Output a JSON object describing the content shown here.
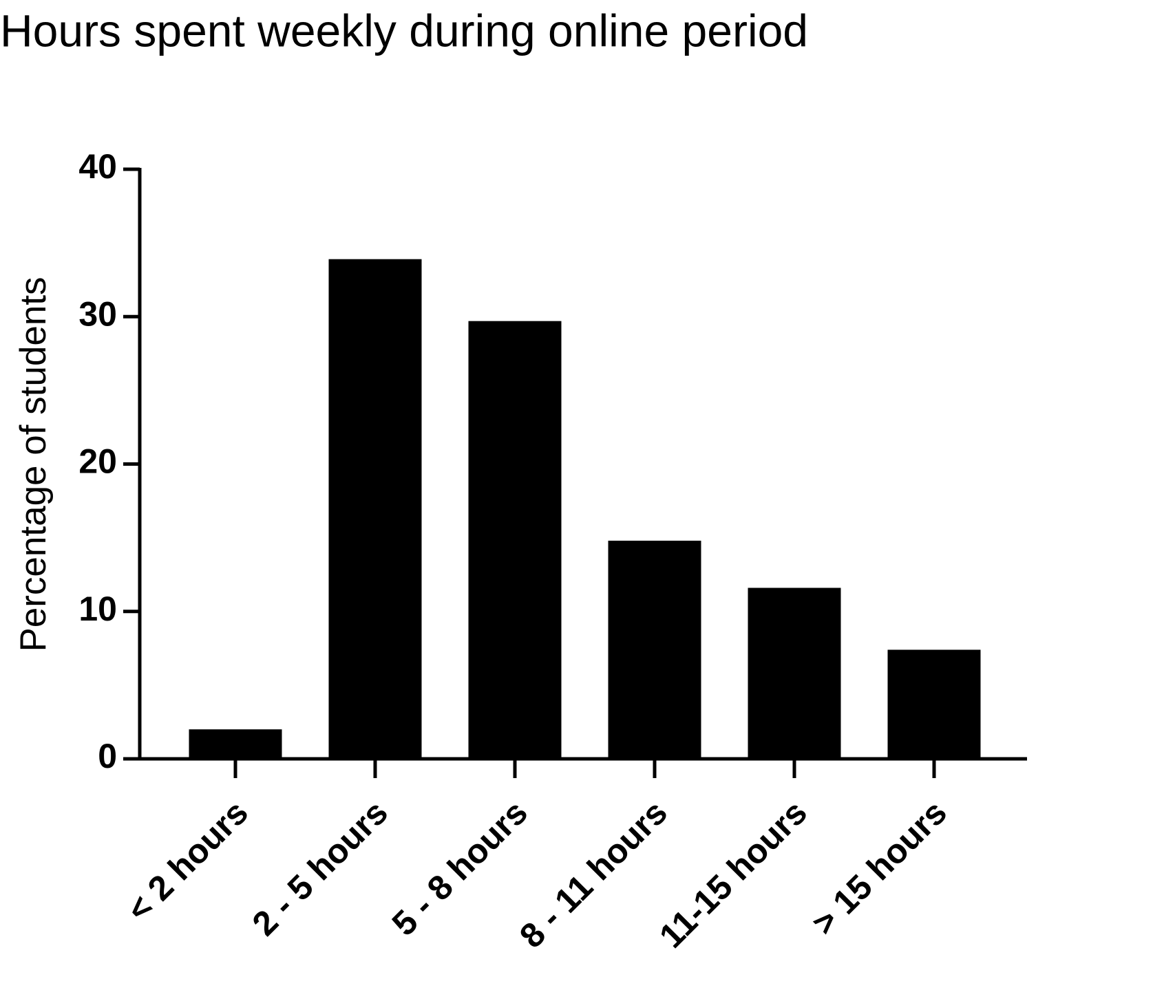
{
  "chart_data": {
    "type": "bar",
    "title": "Hours spent weekly during online period",
    "y_label": "Percentage of students",
    "categories": [
      "< 2 hours",
      "2 - 5 hours",
      "5 - 8 hours",
      "8 - 11 hours",
      "11-15 hours",
      "> 15 hours"
    ],
    "values": [
      2.0,
      33.9,
      29.7,
      14.8,
      11.6,
      7.4
    ],
    "color": "#000000",
    "ylim": [
      0,
      40
    ],
    "yticks": [
      0,
      10,
      20,
      30,
      40
    ],
    "grid": false
  }
}
